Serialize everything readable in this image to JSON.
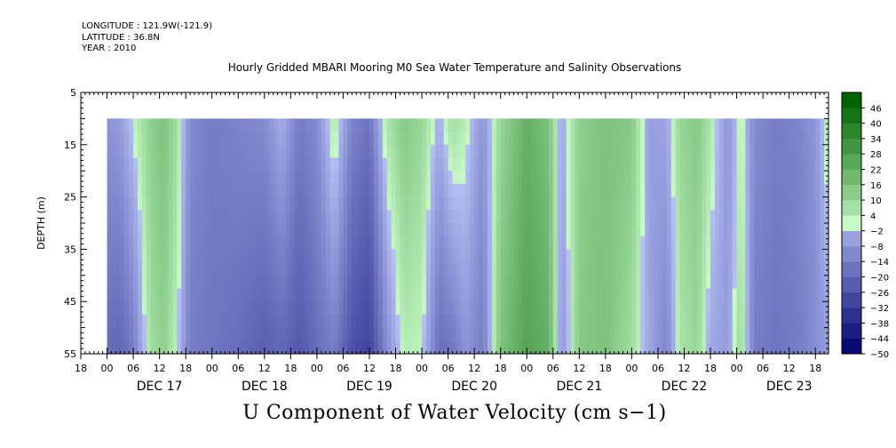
{
  "header": {
    "longitude": "LONGITUDE : 121.9W(-121.9)",
    "latitude": "LATITUDE : 36.8N",
    "year": "YEAR : 2010",
    "title": "Hourly Gridded MBARI Mooring M0 Sea Water Temperature and Salinity Observations"
  },
  "chart_data": {
    "type": "heatmap",
    "title": "Hourly Gridded MBARI Mooring M0 Sea Water Temperature and Salinity Observations",
    "xlabel": "",
    "ylabel": "DEPTH (m)",
    "bottom_title": "U Component of Water Velocity (cm s−1)",
    "ylim": [
      5,
      55
    ],
    "y_inverted": true,
    "y_ticks": [
      5,
      15,
      25,
      35,
      45,
      55
    ],
    "hour_ticks": [
      "00",
      "06",
      "12",
      "18"
    ],
    "day_labels": [
      "DEC 17",
      "DEC 18",
      "DEC 19",
      "DEC 20",
      "DEC 21",
      "DEC 22",
      "DEC 23"
    ],
    "x_start_hours_before_dec17": 6,
    "x_end_hours_after_dec23": 21,
    "data_depth_range": [
      10,
      55
    ],
    "colorbar": {
      "levels": [
        -50,
        -44,
        -38,
        -32,
        -26,
        -20,
        -14,
        -8,
        -2,
        4,
        10,
        16,
        22,
        28,
        34,
        40,
        46
      ],
      "label_levels": [
        -50,
        -44,
        -38,
        -32,
        -26,
        -20,
        -14,
        -8,
        -2,
        4,
        10,
        16,
        22,
        28,
        34,
        40,
        46
      ],
      "negative_color_end": "#00006e",
      "negative_color_start": "#b7c0f5",
      "positive_color_start": "#c8fac8",
      "positive_color_end": "#006400"
    },
    "column_pattern": [
      {
        "hour": 0,
        "surface": -8,
        "bottom": -18
      },
      {
        "hour": 3,
        "surface": -6,
        "bottom": -20
      },
      {
        "hour": 6,
        "surface": 2,
        "bottom": -14
      },
      {
        "hour": 10,
        "surface": 12,
        "bottom": 8
      },
      {
        "hour": 13,
        "surface": 16,
        "bottom": 12
      },
      {
        "hour": 16,
        "surface": 8,
        "bottom": 2
      },
      {
        "hour": 19,
        "surface": -10,
        "bottom": -14
      },
      {
        "hour": 24,
        "surface": -14,
        "bottom": -16
      },
      {
        "hour": 30,
        "surface": -12,
        "bottom": -18
      },
      {
        "hour": 36,
        "surface": -10,
        "bottom": -22
      },
      {
        "hour": 40,
        "surface": -2,
        "bottom": -20
      },
      {
        "hour": 44,
        "surface": -14,
        "bottom": -24
      },
      {
        "hour": 48,
        "surface": -10,
        "bottom": -18
      },
      {
        "hour": 52,
        "surface": 6,
        "bottom": -14
      },
      {
        "hour": 56,
        "surface": -12,
        "bottom": -26
      },
      {
        "hour": 60,
        "surface": -16,
        "bottom": -30
      },
      {
        "hour": 64,
        "surface": 6,
        "bottom": -10
      },
      {
        "hour": 68,
        "surface": 14,
        "bottom": 4
      },
      {
        "hour": 72,
        "surface": 10,
        "bottom": 2
      },
      {
        "hour": 76,
        "surface": -2,
        "bottom": -18
      },
      {
        "hour": 79,
        "surface": 8,
        "bottom": -16
      },
      {
        "hour": 82,
        "surface": 4,
        "bottom": -8
      },
      {
        "hour": 86,
        "surface": -8,
        "bottom": -14
      },
      {
        "hour": 90,
        "surface": 10,
        "bottom": 16
      },
      {
        "hour": 96,
        "surface": 22,
        "bottom": 26
      },
      {
        "hour": 101,
        "surface": 16,
        "bottom": 22
      },
      {
        "hour": 104,
        "surface": -4,
        "bottom": -8
      },
      {
        "hour": 108,
        "surface": 12,
        "bottom": 14
      },
      {
        "hour": 114,
        "surface": 16,
        "bottom": 16
      },
      {
        "hour": 120,
        "surface": 14,
        "bottom": 8
      },
      {
        "hour": 124,
        "surface": -6,
        "bottom": -4
      },
      {
        "hour": 128,
        "surface": -4,
        "bottom": -12
      },
      {
        "hour": 131,
        "surface": 10,
        "bottom": 6
      },
      {
        "hour": 135,
        "surface": 14,
        "bottom": 10
      },
      {
        "hour": 138,
        "surface": 6,
        "bottom": -4
      },
      {
        "hour": 142,
        "surface": -8,
        "bottom": -6
      },
      {
        "hour": 145,
        "surface": 4,
        "bottom": 10
      },
      {
        "hour": 148,
        "surface": -10,
        "bottom": -14
      },
      {
        "hour": 153,
        "surface": -14,
        "bottom": -16
      },
      {
        "hour": 158,
        "surface": -12,
        "bottom": -14
      },
      {
        "hour": 162,
        "surface": -8,
        "bottom": -10
      },
      {
        "hour": 165,
        "surface": 6,
        "bottom": -6
      }
    ]
  }
}
